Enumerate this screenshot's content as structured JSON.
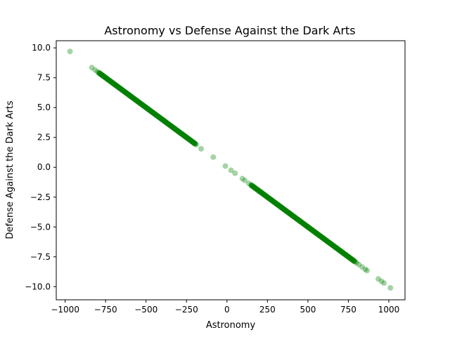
{
  "chart_data": {
    "type": "scatter",
    "title": "Astronomy vs Defense Against the Dark Arts",
    "xlabel": "Astronomy",
    "ylabel": "Defense Against the Dark Arts",
    "xlim": [
      -1055,
      1100
    ],
    "ylim": [
      -11.1,
      10.6
    ],
    "xticks": [
      -1000,
      -750,
      -500,
      -250,
      0,
      250,
      500,
      750,
      1000
    ],
    "xtick_labels": [
      "−1000",
      "−750",
      "−500",
      "−250",
      "0",
      "250",
      "500",
      "750",
      "1000"
    ],
    "yticks": [
      -10,
      -7.5,
      -5,
      -2.5,
      0,
      2.5,
      5,
      7.5,
      10
    ],
    "ytick_labels": [
      "−10.0",
      "−7.5",
      "−5.0",
      "−2.5",
      "0.0",
      "2.5",
      "5.0",
      "7.5",
      "10.0"
    ],
    "grid": false,
    "legend": "none",
    "point_color": "#008000",
    "point_alpha": 0.35,
    "relationship": {
      "slope": -0.01,
      "intercept": 0
    },
    "dense_ranges": [
      {
        "x_from": -790,
        "x_to": -195
      },
      {
        "x_from": 150,
        "x_to": 790
      }
    ],
    "points": [
      [
        -970,
        9.7
      ],
      [
        -835,
        8.35
      ],
      [
        -815,
        8.15
      ],
      [
        -800,
        8.0
      ],
      [
        -790,
        7.9
      ],
      [
        -770,
        7.7
      ],
      [
        -760,
        7.6
      ],
      [
        -200,
        2.0
      ],
      [
        -190,
        1.9
      ],
      [
        -160,
        1.55
      ],
      [
        -85,
        0.85
      ],
      [
        -10,
        0.1
      ],
      [
        25,
        -0.25
      ],
      [
        50,
        -0.5
      ],
      [
        95,
        -0.95
      ],
      [
        110,
        -1.1
      ],
      [
        135,
        -1.35
      ],
      [
        150,
        -1.5
      ],
      [
        800,
        -8.0
      ],
      [
        815,
        -8.15
      ],
      [
        835,
        -8.35
      ],
      [
        855,
        -8.55
      ],
      [
        865,
        -8.65
      ],
      [
        935,
        -9.35
      ],
      [
        955,
        -9.55
      ],
      [
        970,
        -9.7
      ],
      [
        1010,
        -10.1
      ]
    ]
  }
}
